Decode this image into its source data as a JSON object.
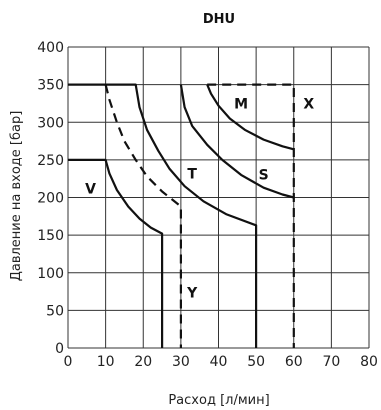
{
  "chart_data": {
    "type": "line",
    "title": "DHU",
    "xlabel": "Расход [л/мин]",
    "ylabel": "Давление на входе [бар]",
    "xlim": [
      0,
      80
    ],
    "ylim": [
      0,
      400
    ],
    "xticks": [
      "0",
      "10",
      "20",
      "30",
      "40",
      "50",
      "60",
      "70",
      "80"
    ],
    "yticks": [
      "0",
      "50",
      "100",
      "150",
      "200",
      "250",
      "300",
      "350",
      "400"
    ],
    "grid": true,
    "series": [
      {
        "name": "V",
        "style": "solid",
        "points": [
          [
            0,
            250
          ],
          [
            10,
            250
          ],
          [
            11,
            232
          ],
          [
            13,
            210
          ],
          [
            16,
            188
          ],
          [
            19,
            172
          ],
          [
            22,
            160
          ],
          [
            25,
            152
          ],
          [
            25,
            0
          ]
        ]
      },
      {
        "name": "Y",
        "style": "dashed",
        "points": [
          [
            10,
            350
          ],
          [
            11,
            330
          ],
          [
            13,
            300
          ],
          [
            15,
            275
          ],
          [
            18,
            250
          ],
          [
            21,
            228
          ],
          [
            25,
            208
          ],
          [
            30,
            188
          ],
          [
            30,
            0
          ]
        ]
      },
      {
        "name": "T",
        "style": "solid",
        "points": [
          [
            0,
            350
          ],
          [
            18,
            350
          ],
          [
            19,
            320
          ],
          [
            21,
            290
          ],
          [
            24,
            262
          ],
          [
            27,
            238
          ],
          [
            31,
            215
          ],
          [
            36,
            195
          ],
          [
            42,
            178
          ],
          [
            50,
            163
          ],
          [
            50,
            0
          ]
        ]
      },
      {
        "name": "S",
        "style": "solid",
        "points": [
          [
            30,
            350
          ],
          [
            31,
            320
          ],
          [
            33,
            295
          ],
          [
            37,
            270
          ],
          [
            41,
            250
          ],
          [
            46,
            230
          ],
          [
            52,
            213
          ],
          [
            57,
            204
          ],
          [
            60,
            200
          ]
        ]
      },
      {
        "name": "M",
        "style": "solid",
        "points": [
          [
            37,
            350
          ],
          [
            38,
            338
          ],
          [
            40,
            322
          ],
          [
            43,
            305
          ],
          [
            47,
            290
          ],
          [
            52,
            277
          ],
          [
            57,
            268
          ],
          [
            60,
            264
          ]
        ]
      },
      {
        "name": "X",
        "style": "dashed",
        "points": [
          [
            37,
            350
          ],
          [
            60,
            350
          ],
          [
            60,
            0
          ]
        ]
      }
    ],
    "annotations": [
      {
        "text": "V",
        "x": 6,
        "y": 205
      },
      {
        "text": "Y",
        "x": 33,
        "y": 67
      },
      {
        "text": "T",
        "x": 33,
        "y": 225
      },
      {
        "text": "S",
        "x": 52,
        "y": 224
      },
      {
        "text": "M",
        "x": 46,
        "y": 318
      },
      {
        "text": "X",
        "x": 64,
        "y": 318
      }
    ]
  }
}
